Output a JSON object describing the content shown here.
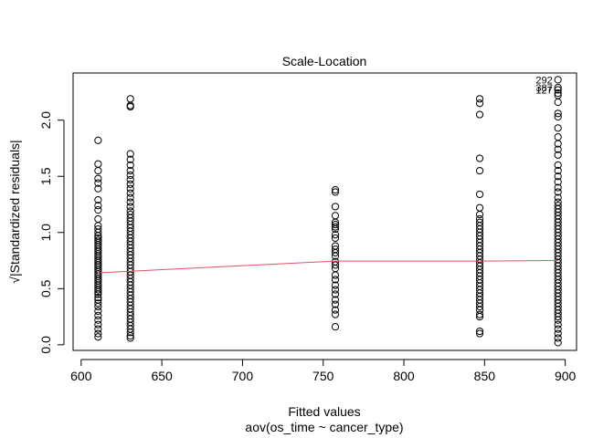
{
  "chart_data": {
    "type": "scatter",
    "title": "Scale-Location",
    "xlabel": "Fitted values",
    "xlabel2": "aov(os_time ~ cancer_type)",
    "ylabel": "√|Standardized residuals|",
    "xlim": [
      595,
      907
    ],
    "ylim": [
      -0.05,
      2.42
    ],
    "xticks": [
      600,
      650,
      700,
      750,
      800,
      850,
      900
    ],
    "yticks": [
      0.0,
      0.5,
      1.0,
      1.5,
      2.0
    ],
    "point_color": "#000000",
    "smooth_color": "#DF536B",
    "groups": [
      {
        "x": 610.5,
        "y": [
          1.82,
          1.61,
          1.55,
          1.48,
          1.44,
          1.39,
          1.29,
          1.24,
          1.2,
          1.12,
          1.06,
          1.03,
          1.0,
          0.97,
          0.95,
          0.93,
          0.91,
          0.89,
          0.87,
          0.85,
          0.83,
          0.81,
          0.79,
          0.77,
          0.75,
          0.73,
          0.71,
          0.69,
          0.67,
          0.65,
          0.63,
          0.61,
          0.59,
          0.57,
          0.55,
          0.53,
          0.51,
          0.49,
          0.47,
          0.45,
          0.42,
          0.4,
          0.37,
          0.34,
          0.3,
          0.26,
          0.22,
          0.18,
          0.14,
          0.1,
          0.07
        ]
      },
      {
        "x": 630.5,
        "y": [
          2.19,
          2.13,
          2.12,
          1.7,
          1.65,
          1.6,
          1.55,
          1.51,
          1.47,
          1.43,
          1.39,
          1.35,
          1.31,
          1.27,
          1.23,
          1.19,
          1.16,
          1.13,
          1.1,
          1.07,
          1.04,
          1.01,
          0.98,
          0.95,
          0.92,
          0.89,
          0.86,
          0.83,
          0.8,
          0.77,
          0.74,
          0.71,
          0.68,
          0.65,
          0.62,
          0.59,
          0.56,
          0.53,
          0.5,
          0.47,
          0.44,
          0.41,
          0.38,
          0.35,
          0.32,
          0.29,
          0.26,
          0.23,
          0.2,
          0.17,
          0.14,
          0.11,
          0.08,
          0.06
        ]
      },
      {
        "x": 757.5,
        "y": [
          1.38,
          1.36,
          1.23,
          1.15,
          1.09,
          1.07,
          1.05,
          1.03,
          0.98,
          0.95,
          0.88,
          0.85,
          0.82,
          0.79,
          0.74,
          0.71,
          0.68,
          0.62,
          0.58,
          0.53,
          0.49,
          0.45,
          0.4,
          0.36,
          0.31,
          0.27,
          0.16
        ]
      },
      {
        "x": 847.0,
        "y": [
          2.19,
          2.15,
          2.05,
          1.66,
          1.55,
          1.34,
          1.22,
          1.16,
          1.12,
          1.09,
          1.06,
          1.03,
          1.0,
          0.97,
          0.94,
          0.91,
          0.88,
          0.85,
          0.82,
          0.79,
          0.76,
          0.73,
          0.7,
          0.67,
          0.64,
          0.61,
          0.58,
          0.55,
          0.52,
          0.49,
          0.46,
          0.43,
          0.4,
          0.37,
          0.34,
          0.31,
          0.27,
          0.25,
          0.12,
          0.1
        ]
      },
      {
        "x": 895.5,
        "y": [
          2.36,
          2.29,
          2.27,
          2.24,
          2.22,
          2.16,
          2.06,
          2.03,
          1.93,
          1.85,
          1.79,
          1.74,
          1.69,
          1.6,
          1.55,
          1.5,
          1.45,
          1.4,
          1.36,
          1.31,
          1.27,
          1.24,
          1.21,
          1.18,
          1.15,
          1.12,
          1.09,
          1.06,
          1.03,
          1.0,
          0.97,
          0.94,
          0.91,
          0.88,
          0.85,
          0.82,
          0.79,
          0.76,
          0.73,
          0.7,
          0.67,
          0.64,
          0.61,
          0.58,
          0.55,
          0.52,
          0.49,
          0.46,
          0.43,
          0.4,
          0.37,
          0.34,
          0.31,
          0.28,
          0.25,
          0.22,
          0.18,
          0.14,
          0.1,
          0.06,
          0.02
        ]
      }
    ],
    "smooth_line": {
      "x": [
        610.5,
        630.5,
        757.5,
        847.0,
        895.5
      ],
      "y": [
        0.64,
        0.655,
        0.745,
        0.745,
        0.75
      ]
    },
    "annotations": [
      {
        "label": "292",
        "x": 895.5,
        "y": 2.36
      },
      {
        "label": "387",
        "x": 895.5,
        "y": 2.29
      },
      {
        "label": "127",
        "x": 895.5,
        "y": 2.27
      }
    ]
  }
}
